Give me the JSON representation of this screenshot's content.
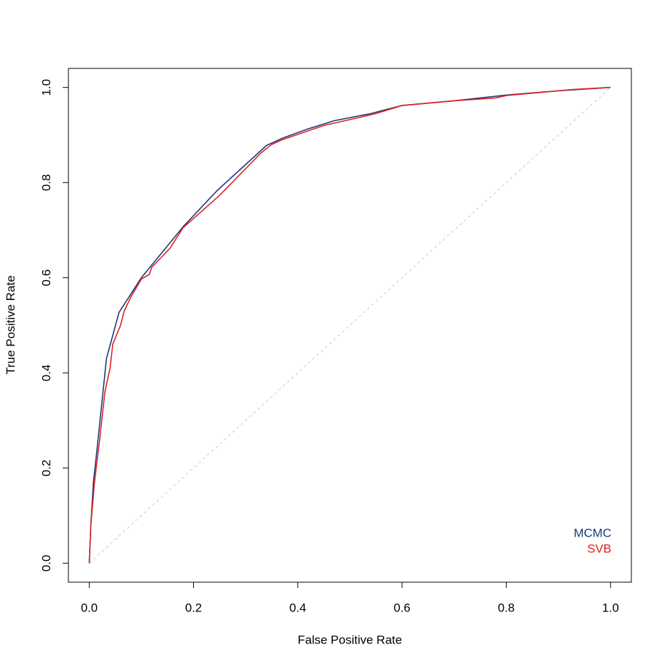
{
  "chart_data": {
    "type": "line",
    "xlabel": "False Positive Rate",
    "ylabel": "True Positive Rate",
    "xlim": [
      -0.04,
      1.04
    ],
    "ylim": [
      -0.04,
      1.04
    ],
    "xticks": [
      {
        "value": 0,
        "label": "0.0"
      },
      0.2,
      0.4,
      0.6,
      0.8,
      {
        "value": 1,
        "label": "1.0"
      }
    ],
    "yticks": [
      {
        "value": 0,
        "label": "0.0"
      },
      0.2,
      0.4,
      0.6,
      0.8,
      {
        "value": 1,
        "label": "1.0"
      }
    ],
    "legend": "bottomright",
    "reference_line": {
      "x": [
        0,
        1
      ],
      "y": [
        0,
        1
      ],
      "color": "#d3d3d3",
      "dashed": true
    },
    "series": [
      {
        "name": "MCMC",
        "color": "#1b3a77",
        "x": [
          0,
          0.003,
          0.008,
          0.015,
          0.033,
          0.057,
          0.1,
          0.18,
          0.245,
          0.34,
          0.37,
          0.42,
          0.47,
          0.54,
          0.6,
          0.7,
          0.8,
          0.9,
          1
        ],
        "values": [
          0,
          0.08,
          0.17,
          0.24,
          0.43,
          0.527,
          0.6,
          0.707,
          0.783,
          0.878,
          0.893,
          0.913,
          0.93,
          0.945,
          0.962,
          0.972,
          0.984,
          0.993,
          1
        ]
      },
      {
        "name": "SVB",
        "color": "#dc2027",
        "x": [
          0,
          0.003,
          0.01,
          0.02,
          0.03,
          0.04,
          0.045,
          0.06,
          0.067,
          0.08,
          0.1,
          0.115,
          0.12,
          0.155,
          0.18,
          0.25,
          0.33,
          0.35,
          0.37,
          0.45,
          0.55,
          0.6,
          0.7,
          0.78,
          0.8,
          0.93,
          1
        ],
        "values": [
          0,
          0.08,
          0.17,
          0.26,
          0.36,
          0.41,
          0.46,
          0.5,
          0.53,
          0.56,
          0.597,
          0.607,
          0.622,
          0.662,
          0.705,
          0.773,
          0.863,
          0.88,
          0.89,
          0.92,
          0.945,
          0.962,
          0.972,
          0.978,
          0.983,
          0.996,
          1
        ]
      }
    ]
  }
}
